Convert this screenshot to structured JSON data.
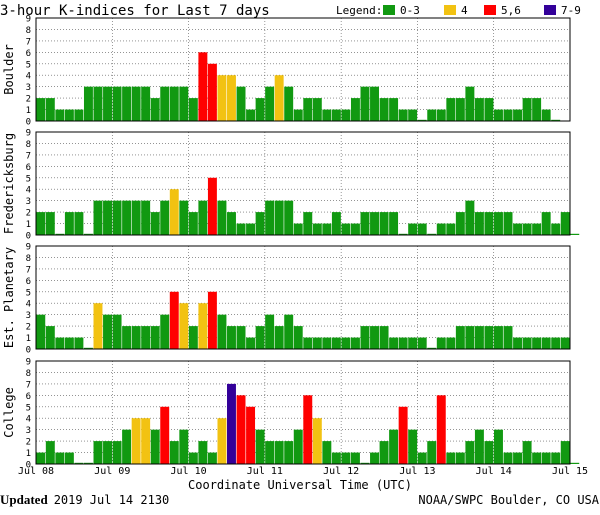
{
  "title": "3-hour K-indices for Last 7 days",
  "legend": {
    "label": "Legend:",
    "items": [
      {
        "label": "0-3",
        "color": "#119911"
      },
      {
        "label": "4",
        "color": "#f2c212"
      },
      {
        "label": "5,6",
        "color": "#ff0000"
      },
      {
        "label": "7-9",
        "color": "#330099"
      }
    ]
  },
  "footer": {
    "updated_label": "Updated",
    "updated_value": "2019 Jul 14 2130",
    "credit": "NOAA/SWPC Boulder, CO USA"
  },
  "chart_data": {
    "type": "bar",
    "xlabel": "Coordinate Universal Time (UTC)",
    "x_ticks": [
      "Jul 08",
      "Jul 09",
      "Jul 10",
      "Jul 11",
      "Jul 12",
      "Jul 13",
      "Jul 14",
      "Jul 15"
    ],
    "ylim": [
      0,
      9
    ],
    "y_ticks": [
      "0",
      "1",
      "2",
      "3",
      "4",
      "5",
      "6",
      "7",
      "8",
      "9"
    ],
    "bins_per_day": 8,
    "grid": true,
    "panels": [
      {
        "name": "Boulder",
        "values": [
          2,
          2,
          1,
          1,
          1,
          3,
          3,
          3,
          3,
          3,
          3,
          3,
          2,
          3,
          3,
          3,
          2,
          6,
          5,
          4,
          4,
          3,
          1,
          2,
          3,
          4,
          3,
          1,
          2,
          2,
          1,
          1,
          1,
          2,
          3,
          3,
          2,
          2,
          1,
          1,
          0,
          1,
          1,
          2,
          2,
          3,
          2,
          2,
          1,
          1,
          1,
          2,
          2,
          1,
          0
        ]
      },
      {
        "name": "Fredericksburg",
        "values": [
          2,
          2,
          0,
          2,
          2,
          0,
          3,
          3,
          3,
          3,
          3,
          3,
          2,
          3,
          4,
          3,
          2,
          3,
          5,
          3,
          2,
          1,
          1,
          2,
          3,
          3,
          3,
          1,
          2,
          1,
          1,
          2,
          1,
          1,
          2,
          2,
          2,
          2,
          0,
          1,
          1,
          0,
          1,
          1,
          2,
          3,
          2,
          2,
          2,
          2,
          1,
          1,
          1,
          2,
          1,
          2,
          0
        ]
      },
      {
        "name": "Est. Planetary",
        "values": [
          3,
          2,
          1,
          1,
          1,
          0,
          4,
          3,
          3,
          2,
          2,
          2,
          2,
          3,
          5,
          4,
          2,
          4,
          5,
          3,
          2,
          2,
          1,
          2,
          3,
          2,
          3,
          2,
          1,
          1,
          1,
          1,
          1,
          1,
          2,
          2,
          2,
          1,
          1,
          1,
          1,
          0,
          1,
          1,
          2,
          2,
          2,
          2,
          2,
          2,
          1,
          1,
          1,
          1,
          1,
          1
        ]
      },
      {
        "name": "College",
        "values": [
          1,
          2,
          1,
          1,
          0,
          0,
          2,
          2,
          2,
          3,
          4,
          4,
          3,
          5,
          2,
          3,
          1,
          2,
          1,
          4,
          7,
          6,
          5,
          3,
          2,
          2,
          2,
          3,
          6,
          4,
          2,
          1,
          1,
          1,
          0,
          1,
          2,
          3,
          5,
          3,
          1,
          2,
          6,
          1,
          1,
          2,
          3,
          2,
          3,
          1,
          1,
          2,
          1,
          1,
          1,
          2,
          0
        ]
      }
    ]
  }
}
